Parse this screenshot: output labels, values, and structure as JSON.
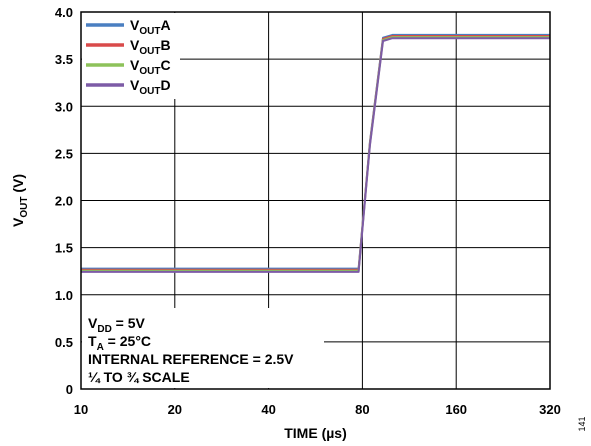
{
  "chart_data": {
    "type": "line",
    "xlabel": "TIME (µs)",
    "ylabel": {
      "main": "V",
      "sub": "OUT",
      "unit": " (V)"
    },
    "x_categories": [
      "10",
      "20",
      "40",
      "80",
      "160",
      "320"
    ],
    "ylim": [
      0,
      4.0
    ],
    "y_ticks": [
      "0",
      "0.5",
      "1.0",
      "1.5",
      "2.0",
      "2.5",
      "3.0",
      "3.5",
      "4.0"
    ],
    "grid": true,
    "legend_position": "top-left",
    "series": [
      {
        "name": {
          "main": "V",
          "sub": "OUT",
          "suffix": "A"
        },
        "color": "#4a7fc1",
        "points": [
          [
            0,
            1.26
          ],
          [
            2.96,
            1.26
          ],
          [
            3.08,
            2.6
          ],
          [
            3.22,
            3.71
          ],
          [
            3.32,
            3.74
          ],
          [
            5,
            3.74
          ]
        ]
      },
      {
        "name": {
          "main": "V",
          "sub": "OUT",
          "suffix": "B"
        },
        "color": "#d94a4a",
        "points": [
          [
            0,
            1.26
          ],
          [
            2.96,
            1.26
          ],
          [
            3.08,
            2.6
          ],
          [
            3.22,
            3.71
          ],
          [
            3.32,
            3.74
          ],
          [
            5,
            3.74
          ]
        ]
      },
      {
        "name": {
          "main": "V",
          "sub": "OUT",
          "suffix": "C"
        },
        "color": "#8dc25a",
        "points": [
          [
            0,
            1.26
          ],
          [
            2.96,
            1.26
          ],
          [
            3.08,
            2.6
          ],
          [
            3.22,
            3.71
          ],
          [
            3.32,
            3.74
          ],
          [
            5,
            3.74
          ]
        ]
      },
      {
        "name": {
          "main": "V",
          "sub": "OUT",
          "suffix": "D"
        },
        "color": "#7d5ba6",
        "points": [
          [
            0,
            1.26
          ],
          [
            2.96,
            1.26
          ],
          [
            3.08,
            2.6
          ],
          [
            3.22,
            3.71
          ],
          [
            3.32,
            3.74
          ],
          [
            5,
            3.74
          ]
        ]
      }
    ],
    "annotations": [
      {
        "main": "V",
        "sub": "DD",
        "rest": " = 5V"
      },
      {
        "main": "T",
        "sub": "A",
        "rest": " = 25°C"
      },
      {
        "main": "INTERNAL REFERENCE = 2.5V",
        "sub": "",
        "rest": ""
      },
      {
        "main": "¼ TO ¾ SCALE",
        "sub": "",
        "rest": ""
      }
    ]
  },
  "figure_id": "141"
}
